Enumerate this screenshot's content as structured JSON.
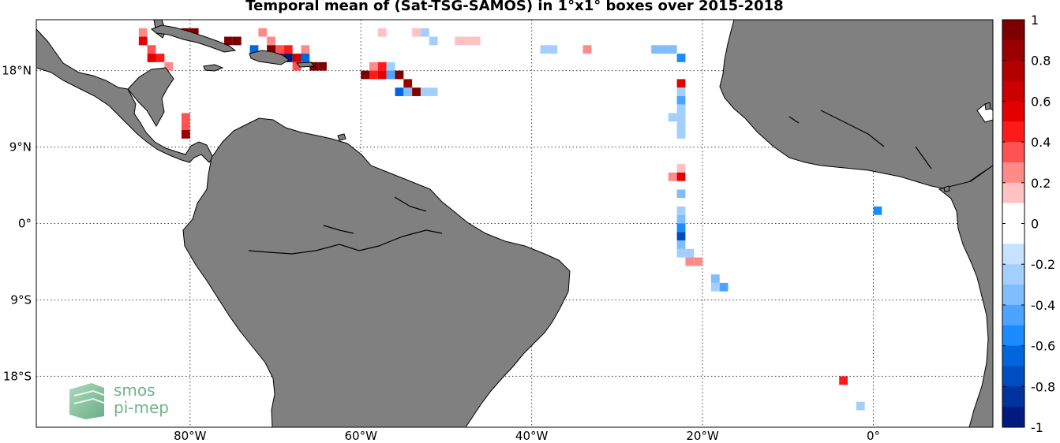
{
  "title": "Temporal mean of (Sat-TSG-SAMOS) in 1°x1° boxes over 2015-2018",
  "map": {
    "lon_range": [
      -98,
      14
    ],
    "lat_range": [
      -24,
      24
    ],
    "lon_ticks": [
      {
        "value": -80,
        "label": "80°W"
      },
      {
        "value": -60,
        "label": "60°W"
      },
      {
        "value": -40,
        "label": "40°W"
      },
      {
        "value": -20,
        "label": "20°W"
      },
      {
        "value": 0,
        "label": "0°"
      }
    ],
    "lat_ticks": [
      {
        "value": 18,
        "label": "18°N"
      },
      {
        "value": 9,
        "label": "9°N"
      },
      {
        "value": 0,
        "label": "0°"
      },
      {
        "value": -9,
        "label": "9°S"
      },
      {
        "value": -18,
        "label": "18°S"
      }
    ],
    "grid": true,
    "land_color": "#808080",
    "ocean_color": "#ffffff"
  },
  "colorbar": {
    "min": -1,
    "max": 1,
    "step": 0.1,
    "tick_labels": [
      "1",
      "0.8",
      "0.6",
      "0.4",
      "0.2",
      "0",
      "-0.2",
      "-0.4",
      "-0.6",
      "-0.8",
      "-1"
    ],
    "colors_top_to_bottom": [
      "#7f0000",
      "#990000",
      "#b20000",
      "#cc0000",
      "#e50000",
      "#ff1a1a",
      "#ff5252",
      "#ff8a8a",
      "#ffc2c2",
      "#ffffff",
      "#ffffff",
      "#c6e2ff",
      "#a3cfff",
      "#7fbdff",
      "#4da4ff",
      "#1a8cff",
      "#0066e0",
      "#004dbf",
      "#00339e",
      "#001a80"
    ]
  },
  "logo": {
    "line1": "smos",
    "line2": "pi-mep"
  },
  "cells": [
    {
      "lon": -85.5,
      "lat": 22.5,
      "v": 0.3
    },
    {
      "lon": -85.5,
      "lat": 21.5,
      "v": 0.6
    },
    {
      "lon": -84.5,
      "lat": 20.5,
      "v": 0.4
    },
    {
      "lon": -84.5,
      "lat": 19.5,
      "v": 0.6
    },
    {
      "lon": -83.5,
      "lat": 19.5,
      "v": 0.5
    },
    {
      "lon": -82.5,
      "lat": 18.5,
      "v": 0.3
    },
    {
      "lon": -80.5,
      "lat": 22.5,
      "v": 0.95
    },
    {
      "lon": -79.5,
      "lat": 22.5,
      "v": 0.95
    },
    {
      "lon": -75.5,
      "lat": 21.5,
      "v": 0.95
    },
    {
      "lon": -74.5,
      "lat": 21.5,
      "v": 0.95
    },
    {
      "lon": -72.5,
      "lat": 20.5,
      "v": -0.6
    },
    {
      "lon": -71.5,
      "lat": 22.5,
      "v": 0.3
    },
    {
      "lon": -70.5,
      "lat": 21.5,
      "v": 0.3
    },
    {
      "lon": -70.5,
      "lat": 20.5,
      "v": 0.95
    },
    {
      "lon": -69.5,
      "lat": 20.5,
      "v": 0.4
    },
    {
      "lon": -69.5,
      "lat": 19.5,
      "v": 0.85
    },
    {
      "lon": -68.5,
      "lat": 20.5,
      "v": 0.5
    },
    {
      "lon": -68.5,
      "lat": 19.5,
      "v": -0.95
    },
    {
      "lon": -67.5,
      "lat": 19.5,
      "v": 0.7
    },
    {
      "lon": -67.5,
      "lat": 18.5,
      "v": 0.4
    },
    {
      "lon": -66.5,
      "lat": 20.5,
      "v": 0.3
    },
    {
      "lon": -66.5,
      "lat": 19.5,
      "v": -0.6
    },
    {
      "lon": -65.5,
      "lat": 18.5,
      "v": 0.95
    },
    {
      "lon": -64.5,
      "lat": 18.5,
      "v": 0.95
    },
    {
      "lon": -57.5,
      "lat": 22.5,
      "v": 0.2
    },
    {
      "lon": -53.5,
      "lat": 22.5,
      "v": 0.2
    },
    {
      "lon": -52.5,
      "lat": 22.5,
      "v": -0.2
    },
    {
      "lon": -51.5,
      "lat": 21.5,
      "v": -0.2
    },
    {
      "lon": -48.5,
      "lat": 21.5,
      "v": 0.2
    },
    {
      "lon": -47.5,
      "lat": 21.5,
      "v": 0.2
    },
    {
      "lon": -46.5,
      "lat": 21.5,
      "v": 0.2
    },
    {
      "lon": -38.5,
      "lat": 20.5,
      "v": -0.2
    },
    {
      "lon": -37.5,
      "lat": 20.5,
      "v": -0.2
    },
    {
      "lon": -33.5,
      "lat": 20.5,
      "v": 0.3
    },
    {
      "lon": -25.5,
      "lat": 20.5,
      "v": -0.3
    },
    {
      "lon": -24.5,
      "lat": 20.5,
      "v": -0.3
    },
    {
      "lon": -23.5,
      "lat": 20.5,
      "v": -0.3
    },
    {
      "lon": -22.5,
      "lat": 19.5,
      "v": -0.5
    },
    {
      "lon": -59.5,
      "lat": 17.5,
      "v": 0.95
    },
    {
      "lon": -58.5,
      "lat": 18.5,
      "v": 0.3
    },
    {
      "lon": -58.5,
      "lat": 17.5,
      "v": 0.5
    },
    {
      "lon": -57.5,
      "lat": 18.5,
      "v": 0.5
    },
    {
      "lon": -57.5,
      "lat": 17.5,
      "v": 0.6
    },
    {
      "lon": -56.5,
      "lat": 18.5,
      "v": -0.2
    },
    {
      "lon": -56.5,
      "lat": 17.5,
      "v": -0.4
    },
    {
      "lon": -55.5,
      "lat": 17.5,
      "v": 0.9
    },
    {
      "lon": -55.5,
      "lat": 15.5,
      "v": -0.6
    },
    {
      "lon": -54.5,
      "lat": 16.5,
      "v": 0.85
    },
    {
      "lon": -54.5,
      "lat": 15.5,
      "v": -0.3
    },
    {
      "lon": -53.5,
      "lat": 15.5,
      "v": 0.9
    },
    {
      "lon": -52.5,
      "lat": 15.5,
      "v": -0.2
    },
    {
      "lon": -51.5,
      "lat": 15.5,
      "v": -0.2
    },
    {
      "lon": -80.5,
      "lat": 12.5,
      "v": 0.4
    },
    {
      "lon": -80.5,
      "lat": 11.5,
      "v": 0.4
    },
    {
      "lon": -80.5,
      "lat": 10.5,
      "v": 0.85
    },
    {
      "lon": -22.5,
      "lat": 16.5,
      "v": 0.6
    },
    {
      "lon": -22.5,
      "lat": 15.5,
      "v": -0.2
    },
    {
      "lon": -22.5,
      "lat": 14.5,
      "v": -0.4
    },
    {
      "lon": -22.5,
      "lat": 13.5,
      "v": -0.2
    },
    {
      "lon": -23.5,
      "lat": 12.5,
      "v": -0.2
    },
    {
      "lon": -22.5,
      "lat": 12.5,
      "v": -0.2
    },
    {
      "lon": -22.5,
      "lat": 11.5,
      "v": -0.2
    },
    {
      "lon": -22.5,
      "lat": 10.5,
      "v": -0.2
    },
    {
      "lon": -22.5,
      "lat": 6.5,
      "v": 0.2
    },
    {
      "lon": -23.5,
      "lat": 5.5,
      "v": 0.3
    },
    {
      "lon": -22.5,
      "lat": 5.5,
      "v": 0.6
    },
    {
      "lon": -22.5,
      "lat": 3.5,
      "v": -0.3
    },
    {
      "lon": -22.5,
      "lat": 1.5,
      "v": -0.2
    },
    {
      "lon": -22.5,
      "lat": 0.5,
      "v": -0.3
    },
    {
      "lon": -22.5,
      "lat": -0.5,
      "v": -0.5
    },
    {
      "lon": -22.5,
      "lat": -1.5,
      "v": -0.7
    },
    {
      "lon": -22.5,
      "lat": -2.5,
      "v": -0.3
    },
    {
      "lon": -22.5,
      "lat": -3.5,
      "v": -0.2
    },
    {
      "lon": -21.5,
      "lat": -3.5,
      "v": -0.2
    },
    {
      "lon": -21.5,
      "lat": -4.5,
      "v": 0.3
    },
    {
      "lon": -20.5,
      "lat": -4.5,
      "v": 0.3
    },
    {
      "lon": -18.5,
      "lat": -6.5,
      "v": -0.3
    },
    {
      "lon": -18.5,
      "lat": -7.5,
      "v": -0.2
    },
    {
      "lon": -17.5,
      "lat": -7.5,
      "v": -0.4
    },
    {
      "lon": 0.5,
      "lat": 1.5,
      "v": -0.5
    },
    {
      "lon": -3.5,
      "lat": -18.5,
      "v": 0.5
    },
    {
      "lon": -1.5,
      "lat": -21.5,
      "v": -0.2
    }
  ]
}
